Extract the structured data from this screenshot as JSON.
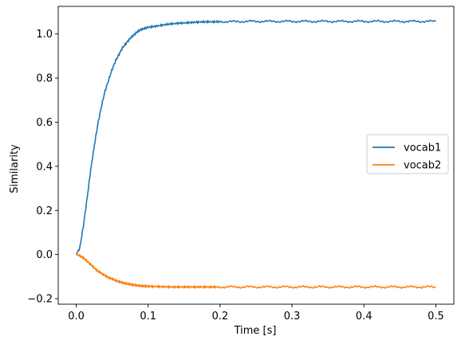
{
  "chart_data": {
    "type": "line",
    "title": "",
    "xlabel": "Time [s]",
    "ylabel": "Similarity",
    "xlim": [
      -0.025,
      0.525
    ],
    "ylim": [
      -0.225,
      1.125
    ],
    "xticks": [
      0.0,
      0.1,
      0.2,
      0.3,
      0.4,
      0.5
    ],
    "xtick_labels": [
      "0.0",
      "0.1",
      "0.2",
      "0.3",
      "0.4",
      "0.5"
    ],
    "yticks": [
      -0.2,
      0.0,
      0.2,
      0.4,
      0.6,
      0.8,
      1.0
    ],
    "ytick_labels": [
      "−0.2",
      "0.0",
      "0.2",
      "0.4",
      "0.6",
      "0.8",
      "1.0"
    ],
    "grid": false,
    "legend": {
      "placement": "center-right",
      "entries": [
        "vocab1",
        "vocab2"
      ]
    },
    "series": [
      {
        "name": "vocab1",
        "color": "#1f77b4",
        "x": [
          0.0,
          0.005,
          0.01,
          0.015,
          0.02,
          0.025,
          0.03,
          0.035,
          0.04,
          0.045,
          0.05,
          0.055,
          0.06,
          0.065,
          0.07,
          0.075,
          0.08,
          0.085,
          0.09,
          0.095,
          0.1,
          0.11,
          0.12,
          0.13,
          0.14,
          0.15,
          0.16,
          0.17,
          0.18,
          0.19,
          0.2,
          0.22,
          0.24,
          0.26,
          0.28,
          0.3,
          0.32,
          0.34,
          0.36,
          0.38,
          0.4,
          0.42,
          0.44,
          0.46,
          0.48,
          0.5
        ],
        "y": [
          0.0,
          0.03,
          0.13,
          0.25,
          0.38,
          0.49,
          0.59,
          0.67,
          0.74,
          0.79,
          0.84,
          0.88,
          0.91,
          0.94,
          0.96,
          0.98,
          0.995,
          1.01,
          1.02,
          1.025,
          1.03,
          1.035,
          1.04,
          1.045,
          1.048,
          1.05,
          1.052,
          1.054,
          1.055,
          1.055,
          1.056,
          1.056,
          1.057,
          1.057,
          1.057,
          1.057,
          1.057,
          1.057,
          1.057,
          1.057,
          1.057,
          1.057,
          1.057,
          1.057,
          1.057,
          1.057
        ]
      },
      {
        "name": "vocab2",
        "color": "#ff7f0e",
        "x": [
          0.0,
          0.005,
          0.01,
          0.015,
          0.02,
          0.025,
          0.03,
          0.035,
          0.04,
          0.045,
          0.05,
          0.055,
          0.06,
          0.065,
          0.07,
          0.075,
          0.08,
          0.085,
          0.09,
          0.095,
          0.1,
          0.11,
          0.12,
          0.13,
          0.14,
          0.15,
          0.16,
          0.17,
          0.18,
          0.19,
          0.2,
          0.22,
          0.24,
          0.26,
          0.28,
          0.3,
          0.32,
          0.34,
          0.36,
          0.38,
          0.4,
          0.42,
          0.44,
          0.46,
          0.48,
          0.5
        ],
        "y": [
          0.0,
          -0.005,
          -0.015,
          -0.03,
          -0.045,
          -0.06,
          -0.075,
          -0.085,
          -0.095,
          -0.105,
          -0.11,
          -0.118,
          -0.123,
          -0.128,
          -0.132,
          -0.135,
          -0.138,
          -0.14,
          -0.142,
          -0.143,
          -0.144,
          -0.145,
          -0.146,
          -0.147,
          -0.147,
          -0.147,
          -0.147,
          -0.147,
          -0.147,
          -0.147,
          -0.147,
          -0.147,
          -0.147,
          -0.147,
          -0.147,
          -0.147,
          -0.147,
          -0.147,
          -0.147,
          -0.147,
          -0.147,
          -0.147,
          -0.147,
          -0.147,
          -0.147,
          -0.147
        ]
      }
    ]
  }
}
